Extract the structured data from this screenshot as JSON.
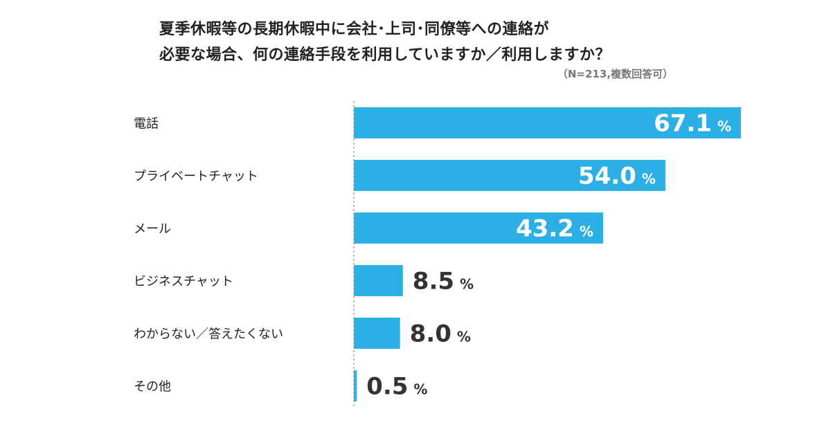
{
  "chart_data": {
    "type": "bar",
    "orientation": "horizontal",
    "title": "夏季休暇等の長期休暇中に会社･上司･同僚等への連絡が\n必要な場合、何の連絡手段を利用していますか／利用しますか？",
    "subtitle": "（N=213,複数回答可）",
    "categories": [
      "電話",
      "プライベートチャット",
      "メール",
      "ビジネスチャット",
      "わからない／答えたくない",
      "その他"
    ],
    "values": [
      67.1,
      54.0,
      43.2,
      8.5,
      8.0,
      0.5
    ],
    "value_labels": [
      "67.1",
      "54.0",
      "43.2",
      "8.5",
      "8.0",
      "0.5"
    ],
    "unit": "%",
    "xlim": [
      0,
      100
    ],
    "grid": false,
    "bar_color": "#2bafe5",
    "label_color_inside": "#ffffff",
    "label_color_outside": "#333333"
  }
}
